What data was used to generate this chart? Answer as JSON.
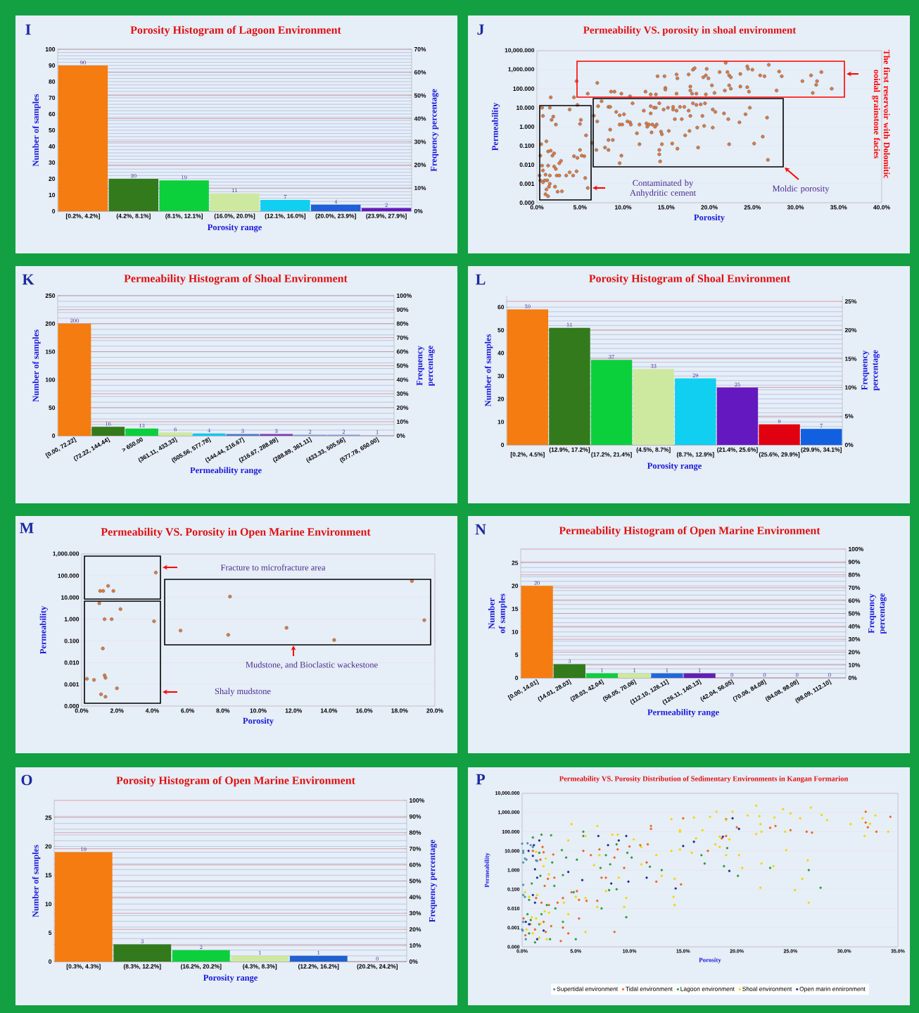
{
  "chart_data": [
    {
      "type": "bar",
      "title": "Porosity Histogram of Lagoon Environment",
      "xlabel": "Porosity range",
      "ylabel": "Number of samples",
      "y2label": "Frequency percentage",
      "annotations": [
        "I"
      ],
      "categories": [
        "[0.2%, 4.2%]",
        "(4.2%, 8.1%]",
        "(8.1%, 12.1%]",
        "(16.0%, 20.0%]",
        "(12.1%, 16.0%]",
        "(20.0%, 23.9%]",
        "(23.9%, 27.9%]"
      ],
      "values": [
        90,
        20,
        19,
        11,
        7,
        4,
        2
      ],
      "colors": [
        "#f47c10",
        "#337a1c",
        "#0ccf3c",
        "#cde9a0",
        "#10cff0",
        "#1f5fd8",
        "#6419c0"
      ],
      "ylim": [
        0,
        100
      ],
      "yticks": [
        0,
        10,
        20,
        30,
        40,
        50,
        60,
        70,
        80,
        90,
        100
      ],
      "y2lim": [
        0,
        70
      ],
      "y2ticks": [
        {
          "value": 0,
          "label": "0%"
        },
        {
          "value": 10,
          "label": "10%"
        },
        {
          "value": 20,
          "label": "20%"
        },
        {
          "value": 30,
          "label": "30%"
        },
        {
          "value": 40,
          "label": "40%"
        },
        {
          "value": 50,
          "label": "50%"
        },
        {
          "value": 60,
          "label": "60%"
        },
        {
          "value": 70,
          "label": "70%"
        }
      ],
      "data_labels": true,
      "grid": "y"
    },
    {
      "type": "scatter",
      "title": "Permeability VS. porosity in shoal environment",
      "xlabel": "Porosity",
      "ylabel": "Permeability",
      "annotations": [
        "J",
        "Contaminated by Anhydritic cement",
        "Moldic porosity",
        "The first reservoir with Dolomitic ooidal grainstone facies"
      ],
      "series": [
        {
          "color": "#e8782a",
          "x": [
            4.6,
            7.0,
            8.6,
            9.0,
            9.8,
            10.8,
            12.6,
            13.2,
            13.8,
            14.0,
            14.8,
            14.9,
            14.9,
            16.2,
            16.3,
            16.2,
            17.6,
            17.8,
            17.8,
            18.1,
            18.3,
            18.0,
            18.5,
            19.3,
            19.6,
            19.7,
            19.9,
            19.6,
            20.3,
            20.6,
            21.2,
            21.8,
            21.9,
            22.1,
            22.3,
            22.5,
            22.3,
            22.5,
            23.6,
            23.6,
            24.4,
            24.5,
            25.0,
            24.4,
            24.6,
            25.9,
            26.4,
            26.9,
            27.8,
            28.1,
            28.4,
            30.8,
            31.8,
            32.0,
            32.5,
            32.4,
            33.0,
            34.2,
            1.6,
            4.3,
            5.9,
            6.6,
            6.4,
            7.0,
            6.9,
            7.1,
            7.5,
            7.9,
            8.3,
            8.3,
            8.5,
            8.5,
            8.3,
            8.8,
            9.2,
            9.6,
            9.6,
            9.9,
            9.8,
            9.6,
            10.1,
            10.5,
            10.8,
            10.9,
            11.1,
            11.6,
            11.9,
            11.9,
            12.4,
            12.7,
            12.8,
            13.0,
            13.2,
            13.2,
            13.3,
            13.4,
            13.7,
            13.9,
            13.6,
            13.8,
            14.2,
            14.2,
            14.2,
            14.3,
            14.5,
            14.4,
            14.5,
            14.7,
            15.2,
            15.3,
            15.7,
            15.8,
            15.8,
            16.0,
            16.2,
            16.3,
            16.6,
            16.8,
            17.1,
            17.2,
            17.6,
            17.7,
            17.8,
            18.1,
            18.5,
            19.0,
            18.6,
            18.7,
            19.2,
            19.4,
            19.5,
            20.4,
            20.7,
            20.4,
            21.7,
            22.2,
            22.3,
            23.5,
            24.2,
            24.7,
            25.2,
            26.2,
            26.7,
            26.8,
            0.6,
            0.7,
            1.5,
            1.7,
            1.9,
            2.2,
            3.8,
            4.7,
            5.1,
            5.0,
            5.7,
            0.5,
            1.1,
            1.3,
            1.6,
            1.8,
            2.0,
            0.4,
            0.6,
            0.7,
            1.0,
            0.3,
            0.4,
            0.7,
            0.9,
            1.2,
            1.5,
            1.5,
            1.3,
            2.0,
            2.2,
            2.6,
            2.8,
            2.3,
            2.6,
            1.1,
            1.4,
            1.0,
            1.3,
            2.1,
            2.4,
            2.9,
            3.4,
            3.8,
            4.2,
            4.6,
            4.3,
            4.7,
            5.0,
            5.2,
            5.5,
            5.6,
            5.9
          ],
          "values": [
            250,
            200,
            70,
            70,
            55,
            40,
            70,
            50,
            50,
            450,
            450,
            110,
            90,
            560,
            350,
            55,
            560,
            130,
            80,
            1000,
            1200,
            55,
            55,
            400,
            500,
            1100,
            350,
            50,
            150,
            60,
            750,
            80,
            2300,
            750,
            500,
            400,
            150,
            100,
            600,
            130,
            1500,
            1100,
            1000,
            120,
            70,
            500,
            450,
            1800,
            80,
            800,
            450,
            250,
            500,
            60,
            250,
            160,
            750,
            100,
            35,
            35,
            55,
            3.8,
            0.14,
            1.9,
            0.06,
            12,
            22,
            0.08,
            0.06,
            11,
            11,
            0.7,
            0.2,
            0.2,
            6,
            4,
            1.3,
            1.3,
            0.03,
            0.012,
            4.5,
            1.9,
            1.7,
            1.3,
            17,
            0.45,
            1.3,
            0.12,
            7,
            1.5,
            1.0,
            1.3,
            12,
            5,
            0.5,
            1.3,
            1.0,
            1.3,
            10,
            10,
            17,
            0.06,
            0.035,
            0.015,
            0.12,
            0.55,
            0.4,
            8,
            10,
            0.6,
            0.13,
            11,
            8,
            2.5,
            7,
            0.07,
            11,
            2.5,
            11,
            0.35,
            7,
            0.6,
            3.7,
            17,
            14,
            15,
            0.9,
            0.08,
            3.7,
            1.1,
            17,
            8,
            6,
            0.9,
            5,
            2.5,
            0.12,
            1.7,
            4.5,
            10,
            0.13,
            0.3,
            3,
            0.018,
            10,
            3.7,
            10,
            2.3,
            3.4,
            1.3,
            8,
            14,
            2.3,
            1.4,
            0.35,
            0.12,
            0.17,
            0.05,
            0.055,
            0.03,
            0.04,
            0.03,
            0.009,
            0.005,
            0.003,
            0.0027,
            0.0015,
            0.0012,
            0.0015,
            0.0015,
            0.0027,
            0.001,
            0.009,
            0.008,
            0.006,
            0.012,
            0.016,
            0.0027,
            0.0027,
            0.0005,
            0.0007,
            0.00028,
            0.00022,
            0.0007,
            0.00038,
            0.0004,
            0.0027,
            0.004,
            0.0027,
            0.0045,
            0.028,
            0.023,
            0.06,
            0.03,
            0.028,
            0.002,
            0.0006
          ]
        }
      ],
      "xlim": [
        0,
        40
      ],
      "xticks": [
        {
          "value": 0,
          "label": "0.0%"
        },
        {
          "value": 5,
          "label": "5.0%"
        },
        {
          "value": 10,
          "label": "10.0%"
        },
        {
          "value": 15,
          "label": "15.0%"
        },
        {
          "value": 20,
          "label": "20.0%"
        },
        {
          "value": 25,
          "label": "25.0%"
        },
        {
          "value": 30,
          "label": "30.0%"
        },
        {
          "value": 35,
          "label": "35.0%"
        },
        {
          "value": 40,
          "label": "40.0%"
        }
      ],
      "ylim": [
        0.0001,
        10000
      ],
      "yticks": [
        {
          "value": 0.0001,
          "label": "0.000"
        },
        {
          "value": 0.001,
          "label": "0.001"
        },
        {
          "value": 0.01,
          "label": "0.010"
        },
        {
          "value": 0.1,
          "label": "0.100"
        },
        {
          "value": 1,
          "label": "1.000"
        },
        {
          "value": 10,
          "label": "10.000"
        },
        {
          "value": 100,
          "label": "100.000"
        },
        {
          "value": 1000,
          "label": "1,000.000"
        },
        {
          "value": 10000,
          "label": "10,000.000"
        }
      ],
      "log": "y",
      "marker": "circle",
      "grid": "y"
    },
    {
      "type": "bar",
      "title": "Permeability Histogram of Shoal Environment",
      "xlabel": "Permeability range",
      "ylabel": "Number of samples",
      "y2label": "Frequency percentage",
      "annotations": [
        "K"
      ],
      "categories": [
        "[0.00, 72.22]",
        "(72.22, 144.44]",
        "> 650.00",
        "(361.11, 433.33]",
        "(505.56, 577.78]",
        "(144.44, 216.67]",
        "(216.67, 288.89]",
        "(288.89, 361.11]",
        "(433.33, 505.56]",
        "(577.78, 650.00]"
      ],
      "values": [
        200,
        16,
        13,
        6,
        4,
        3,
        3,
        2,
        2,
        1
      ],
      "colors": [
        "#f47c10",
        "#337a1c",
        "#0ccf3c",
        "#cde9a0",
        "#10c8f0",
        "#4a78c8",
        "#7a3ab0",
        "#7f9ccf",
        "#7f9ccf",
        "#b0b8d0"
      ],
      "ylim": [
        0,
        250
      ],
      "yticks": [
        0,
        50,
        100,
        150,
        200,
        250
      ],
      "y2lim": [
        0,
        100
      ],
      "y2ticks": [
        {
          "value": 0,
          "label": "0%"
        },
        {
          "value": 10,
          "label": "10%"
        },
        {
          "value": 20,
          "label": "20%"
        },
        {
          "value": 30,
          "label": "30%"
        },
        {
          "value": 40,
          "label": "40%"
        },
        {
          "value": 50,
          "label": "50%"
        },
        {
          "value": 60,
          "label": "60%"
        },
        {
          "value": 70,
          "label": "70%"
        },
        {
          "value": 80,
          "label": "80%"
        },
        {
          "value": 90,
          "label": "90%"
        },
        {
          "value": 100,
          "label": "100%"
        }
      ],
      "data_labels": true,
      "grid": "y"
    },
    {
      "type": "bar",
      "title": "Porosity Histogram of Shoal Environment",
      "xlabel": "Porosity range",
      "ylabel": "Number of samples",
      "y2label": "Frequency percentage",
      "annotations": [
        "L"
      ],
      "categories": [
        "[0.2%, 4.5%]",
        "(12.9%, 17.2%]",
        "(17.2%, 21.4%]",
        "(4.5%, 8.7%]",
        "(8.7%, 12.9%]",
        "(21.4%, 25.6%]",
        "(25.6%, 29.9%]",
        "(29.9%, 34.1%]"
      ],
      "values": [
        59,
        51,
        37,
        33,
        29,
        25,
        9,
        7
      ],
      "colors": [
        "#f47c10",
        "#337a1c",
        "#0ccf3c",
        "#cde9a0",
        "#10cff0",
        "#6419c0",
        "#e00010",
        "#1060e0"
      ],
      "ylim": [
        0,
        65
      ],
      "yticks": [
        0,
        10,
        20,
        30,
        40,
        50,
        60
      ],
      "y2lim": [
        0,
        26
      ],
      "y2ticks": [
        {
          "value": 0,
          "label": "0%"
        },
        {
          "value": 5,
          "label": "5%"
        },
        {
          "value": 10,
          "label": "10%"
        },
        {
          "value": 15,
          "label": "15%"
        },
        {
          "value": 20,
          "label": "20%"
        },
        {
          "value": 25,
          "label": "25%"
        }
      ],
      "data_labels": true,
      "grid": "y"
    },
    {
      "type": "scatter",
      "title": "Permeability VS. Porosity in Open Marine Environment",
      "xlabel": "Porosity",
      "ylabel": "Permeability",
      "annotations": [
        "M",
        "Fracture to microfracture area",
        "Mudstone, and Bioclastic wackestone",
        "Shaly mudstone"
      ],
      "series": [
        {
          "color": "#e8782a",
          "x": [
            4.2,
            1.05,
            1.22,
            1.5,
            1.8,
            1.0,
            2.2,
            1.3,
            1.7,
            4.1,
            1.2,
            0.3,
            0.7,
            1.3,
            1.35,
            2.0,
            1.1,
            1.35,
            5.6,
            8.4,
            8.3,
            11.6,
            14.3,
            18.7,
            19.4
          ],
          "values": [
            140,
            20,
            20,
            34,
            20,
            5.4,
            2.9,
            1.0,
            1.0,
            0.8,
            0.045,
            0.0018,
            0.0016,
            0.0026,
            0.002,
            0.00066,
            0.00035,
            0.00027,
            0.3,
            11,
            0.19,
            0.4,
            0.11,
            57,
            0.9
          ]
        }
      ],
      "xlim": [
        0,
        20
      ],
      "xticks": [
        {
          "value": 0,
          "label": "0.0%"
        },
        {
          "value": 2,
          "label": "2.0%"
        },
        {
          "value": 4,
          "label": "4.0%"
        },
        {
          "value": 6,
          "label": "6.0%"
        },
        {
          "value": 8,
          "label": "8.0%"
        },
        {
          "value": 10,
          "label": "10.0%"
        },
        {
          "value": 12,
          "label": "12.0%"
        },
        {
          "value": 14,
          "label": "14.0%"
        },
        {
          "value": 16,
          "label": "16.0%"
        },
        {
          "value": 18,
          "label": "18.0%"
        },
        {
          "value": 20,
          "label": "20.0%"
        }
      ],
      "ylim": [
        0.0001,
        1000
      ],
      "yticks": [
        {
          "value": 0.0001,
          "label": "0.000"
        },
        {
          "value": 0.001,
          "label": "0.001"
        },
        {
          "value": 0.01,
          "label": "0.010"
        },
        {
          "value": 0.1,
          "label": "0.100"
        },
        {
          "value": 1,
          "label": "1.000"
        },
        {
          "value": 10,
          "label": "10.000"
        },
        {
          "value": 100,
          "label": "100.000"
        },
        {
          "value": 1000,
          "label": "1,000.000"
        }
      ],
      "log": "y",
      "marker": "circle",
      "grid": "y"
    },
    {
      "type": "bar",
      "title": "Permeability Histogram of Open Marine Environment",
      "xlabel": "Permeability range",
      "ylabel": "Number of samples",
      "y2label": "Frequency percentage",
      "annotations": [
        "N"
      ],
      "categories": [
        "[0.00, 14.01]",
        "(14.01, 28.03]",
        "(28.03, 42.04]",
        "(56.05, 70.06]",
        "(112.10, 126.11]",
        "(126.11, 140.13]",
        "(42.04, 56.05]",
        "(70.06, 84.08]",
        "(84.08, 98.09]",
        "(98.09, 112.10]"
      ],
      "values": [
        20,
        3,
        1,
        1,
        1,
        1,
        0,
        0,
        0,
        0
      ],
      "colors": [
        "#f47c10",
        "#337a1c",
        "#0ccf3c",
        "#cde9a0",
        "#2068d8",
        "#6020b0",
        "#6020b0",
        "#6020b0",
        "#6020b0",
        "#6020b0"
      ],
      "ylim": [
        0,
        28
      ],
      "yticks": [
        0,
        5,
        10,
        15,
        20,
        25
      ],
      "y2lim": [
        0,
        100
      ],
      "y2ticks": [
        {
          "value": 0,
          "label": "0%"
        },
        {
          "value": 10,
          "label": "10%"
        },
        {
          "value": 20,
          "label": "20%"
        },
        {
          "value": 30,
          "label": "30%"
        },
        {
          "value": 40,
          "label": "40%"
        },
        {
          "value": 50,
          "label": "50%"
        },
        {
          "value": 60,
          "label": "60%"
        },
        {
          "value": 70,
          "label": "70%"
        },
        {
          "value": 80,
          "label": "80%"
        },
        {
          "value": 90,
          "label": "90%"
        },
        {
          "value": 100,
          "label": "100%"
        }
      ],
      "data_labels": true,
      "grid": "y"
    },
    {
      "type": "bar",
      "title": "Porosity Histogram of Open Marine  Environment",
      "xlabel": "Porosity range",
      "ylabel": "Number of samples",
      "y2label": "Frequency percentage",
      "annotations": [
        "O"
      ],
      "categories": [
        "[0.3%, 4.3%]",
        "(8.3%, 12.2%]",
        "(16.2%, 20.2%]",
        "(4.3%, 8.3%]",
        "(12.2%, 16.2%]",
        "(20.2%, 24.2%]"
      ],
      "values": [
        19,
        3,
        2,
        1,
        1,
        0
      ],
      "colors": [
        "#f47c10",
        "#337a1c",
        "#0ccf3c",
        "#cde9a0",
        "#2060d0",
        "#6020b0"
      ],
      "ylim": [
        0,
        28
      ],
      "yticks": [
        0,
        5,
        10,
        15,
        20,
        25
      ],
      "y2lim": [
        0,
        100
      ],
      "y2ticks": [
        {
          "value": 0,
          "label": "0%"
        },
        {
          "value": 10,
          "label": "10%"
        },
        {
          "value": 20,
          "label": "20%"
        },
        {
          "value": 30,
          "label": "30%"
        },
        {
          "value": 40,
          "label": "40%"
        },
        {
          "value": 50,
          "label": "50%"
        },
        {
          "value": 60,
          "label": "60%"
        },
        {
          "value": 70,
          "label": "70%"
        },
        {
          "value": 80,
          "label": "80%"
        },
        {
          "value": 90,
          "label": "90%"
        },
        {
          "value": 100,
          "label": "100%"
        }
      ],
      "data_labels": true,
      "grid": "y"
    },
    {
      "type": "scatter",
      "title": "Permeability VS. Porosity Distribution of Sedimentary Environments in Kangan Formarion",
      "xlabel": "Porosity",
      "ylabel": "Permeability",
      "annotations": [
        "P"
      ],
      "series": [
        {
          "name": "Supertidal environment",
          "color": "#4a90b8",
          "x": [
            0,
            0.1,
            0.1,
            0.5,
            0.26,
            0.1,
            0.4,
            0.1,
            0.1,
            0.26,
            0.1,
            0,
            0.05,
            1.3,
            0.8,
            1.0,
            0.34,
            1.4
          ],
          "values": [
            24,
            10,
            8,
            25,
            4,
            2.5,
            3.5,
            0.17,
            0.05,
            0.04,
            0.002,
            0.0008,
            0.0007,
            3.2,
            20,
            16,
            0.00025,
            3
          ]
        },
        {
          "name": "Tidal environment",
          "color": "#f06020",
          "x": [
            15.0,
            32.0,
            34.3,
            32.0,
            32.2,
            33.0,
            25.0,
            26.5,
            27.0,
            23.6,
            23.1,
            20.0,
            19.0,
            18.6,
            19.0,
            12.0,
            12.0,
            11.0,
            11.7,
            10.0,
            9.5,
            8.9,
            8.6,
            7.2,
            6.4,
            5.7,
            2.9,
            2.0,
            1.9,
            1.0,
            1.7,
            2.4,
            2.1,
            3.0,
            1.3,
            1.8,
            2.5,
            3.3,
            3.8,
            4.6,
            5.1,
            5.3,
            6.0,
            7.0,
            7.4,
            7.8,
            5.3,
            3.8,
            3.6,
            4.3,
            8.6,
            2.0,
            1.2,
            0.3,
            0.75,
            0.13,
            2.2,
            2.7,
            12.5,
            14.8,
            17.3,
            11.6
          ],
          "values": [
            500,
            1100,
            600,
            300,
            170,
            100,
            120,
            100,
            90,
            200,
            160,
            170,
            450,
            45,
            60,
            200,
            140,
            20,
            22,
            17,
            1.3,
            12,
            4.5,
            12,
            6,
            10,
            6.5,
            8.5,
            16,
            10,
            3.5,
            0.35,
            0.15,
            0.4,
            0.035,
            0.02,
            0.015,
            0.02,
            0.035,
            0.07,
            0.08,
            0.028,
            0.025,
            0.025,
            0.4,
            0.4,
            0.003,
            0.001,
            0.0002,
            0.0005,
            0.0006,
            0.002,
            0.0008,
            0.0004,
            0.0015,
            0.003,
            0.0006,
            0.0012,
            0.25,
            0.18,
            10,
            2.5
          ]
        },
        {
          "name": "Lagoon environment",
          "color": "#2a9a3a",
          "x": [
            1.8,
            2.7,
            1.0,
            5.7,
            5.7,
            3.7,
            4.1,
            2.8,
            5.1,
            8.8,
            7.8,
            7.3,
            8.2,
            9.8,
            10.2,
            11.9,
            13.0,
            16.7,
            17.0,
            19.1,
            18.8,
            20.1,
            23.1,
            26.7,
            27.8,
            9.7,
            8.1,
            8.8,
            7.4,
            3.8,
            3.0,
            1.7,
            0.9,
            0.65,
            2.3,
            3.1,
            4.8,
            5.0,
            0.65,
            1.2,
            2.6,
            0.8,
            1.6,
            0.5,
            1.8,
            3.8,
            1.6
          ],
          "values": [
            70,
            65,
            50,
            100,
            60,
            11,
            4.5,
            2.5,
            3.5,
            22,
            6,
            1.3,
            2,
            8,
            4.5,
            1.5,
            1.0,
            6,
            2.2,
            14,
            1.6,
            0.5,
            1.3,
            1.0,
            0.12,
            0.0035,
            0.09,
            0.1,
            0.01,
            0.55,
            0.15,
            0.5,
            0.2,
            0.028,
            0.015,
            0.01,
            0.07,
            0.00025,
            0.0005,
            0.00017,
            0.00025,
            0.0025,
            0.0015,
            0.005,
            0.005,
            0.002,
            8
          ]
        },
        {
          "name": "Shoal environment",
          "color": "#f2d600",
          "x": [
            26.9,
            21.8,
            24.3,
            25.0,
            25.9,
            27.9,
            28.4,
            30.6,
            31.7,
            32.9,
            32.4,
            31.9,
            34.1,
            21.0,
            22.1,
            22.2,
            22.3,
            21.8,
            23.5,
            24.5,
            24.6,
            25.4,
            23.4,
            22.3,
            22.2,
            26.1,
            26.6,
            26.7,
            18.1,
            19.0,
            19.6,
            18.4,
            18.0,
            18.4,
            19.3,
            19.0,
            20.2,
            20.5,
            17.5,
            16.0,
            16.2,
            16.8,
            15.8,
            14.7,
            13.9,
            13.9,
            14.7,
            14.7,
            14.1,
            14.2,
            14.2,
            13.0,
            12.5,
            11.1,
            11.1,
            10.4,
            9.7,
            9.5,
            9.0,
            8.9,
            8.4,
            7.0,
            4.6,
            4.3,
            5.9,
            6.7,
            7.2,
            7.8,
            7.0,
            5.9,
            5.0,
            4.3,
            3.9,
            5.9,
            2.5,
            2.1,
            1.6,
            1.0,
            0.4,
            0.26,
            0.65,
            1.4,
            0.9,
            1.3,
            1.7,
            2.3,
            2.2,
            1.3,
            2.0,
            2.5
          ],
          "values": [
            1800,
            2300,
            1500,
            900,
            500,
            750,
            400,
            250,
            500,
            700,
            260,
            60,
            100,
            700,
            650,
            250,
            100,
            75,
            550,
            100,
            11,
            0.09,
            1.6,
            2.2,
            0.12,
            0.35,
            3.2,
            0.02,
            1100,
            400,
            1100,
            55,
            22,
            16,
            40,
            6,
            6,
            1.3,
            600,
            550,
            45,
            120,
            8,
            12,
            10,
            450,
            120,
            100,
            0.04,
            0.015,
            0.35,
            0.5,
            6,
            2,
            16,
            40,
            0.035,
            0.012,
            0.4,
            70,
            70,
            200,
            250,
            35,
            60,
            1.8,
            6,
            0.08,
            0.012,
            0.035,
            0.04,
            0.005,
            0.02,
            0.0006,
            0.006,
            0.007,
            0.0003,
            0.0005,
            0.0008,
            0.07,
            0.04,
            0.05,
            0.0035,
            0.003,
            0.0016,
            0.00025,
            4,
            9,
            1.6,
            0.6
          ]
        },
        {
          "name": "Open marin ennironment",
          "color": "#1a2a9a",
          "x": [
            0.6,
            1.0,
            1.1,
            1.6,
            1.2,
            1.4,
            1.0,
            1.2,
            0.34,
            0.65,
            1.4,
            2.0,
            4.3,
            5.6,
            7.1,
            8.0,
            9.0,
            9.7,
            8.3,
            9.9,
            11.6,
            14.3,
            15.0,
            16.0,
            18.7,
            19.6,
            20.2,
            19.3
          ],
          "values": [
            10,
            5.5,
            20,
            35,
            1.1,
            0.4,
            0.05,
            0.02,
            0.002,
            0.0015,
            0.00025,
            0.0007,
            0.8,
            0.3,
            60,
            20,
            35,
            60,
            0.2,
            0.25,
            0.4,
            0.11,
            18,
            30,
            55,
            500,
            140,
            0.9
          ]
        }
      ],
      "xlim": [
        0,
        35
      ],
      "xticks": [
        {
          "value": 0,
          "label": "0.0%"
        },
        {
          "value": 5,
          "label": "5.0%"
        },
        {
          "value": 10,
          "label": "10.0%"
        },
        {
          "value": 15,
          "label": "15.0%"
        },
        {
          "value": 20,
          "label": "20.0%"
        },
        {
          "value": 25,
          "label": "25.0%"
        },
        {
          "value": 30,
          "label": "30.0%"
        },
        {
          "value": 35,
          "label": "35.0%"
        }
      ],
      "ylim": [
        0.0001,
        10000
      ],
      "yticks": [
        {
          "value": 0.0001,
          "label": "0.000"
        },
        {
          "value": 0.001,
          "label": "0.001"
        },
        {
          "value": 0.01,
          "label": "0.010"
        },
        {
          "value": 0.1,
          "label": "0.100"
        },
        {
          "value": 1,
          "label": "1.000"
        },
        {
          "value": 10,
          "label": "10.000"
        },
        {
          "value": 100,
          "label": "100.000"
        },
        {
          "value": 1000,
          "label": "1,000.000"
        },
        {
          "value": 10000,
          "label": "10,000.000"
        }
      ],
      "log": "y",
      "marker": "circle",
      "grid": "y",
      "legend": "bottom"
    }
  ]
}
